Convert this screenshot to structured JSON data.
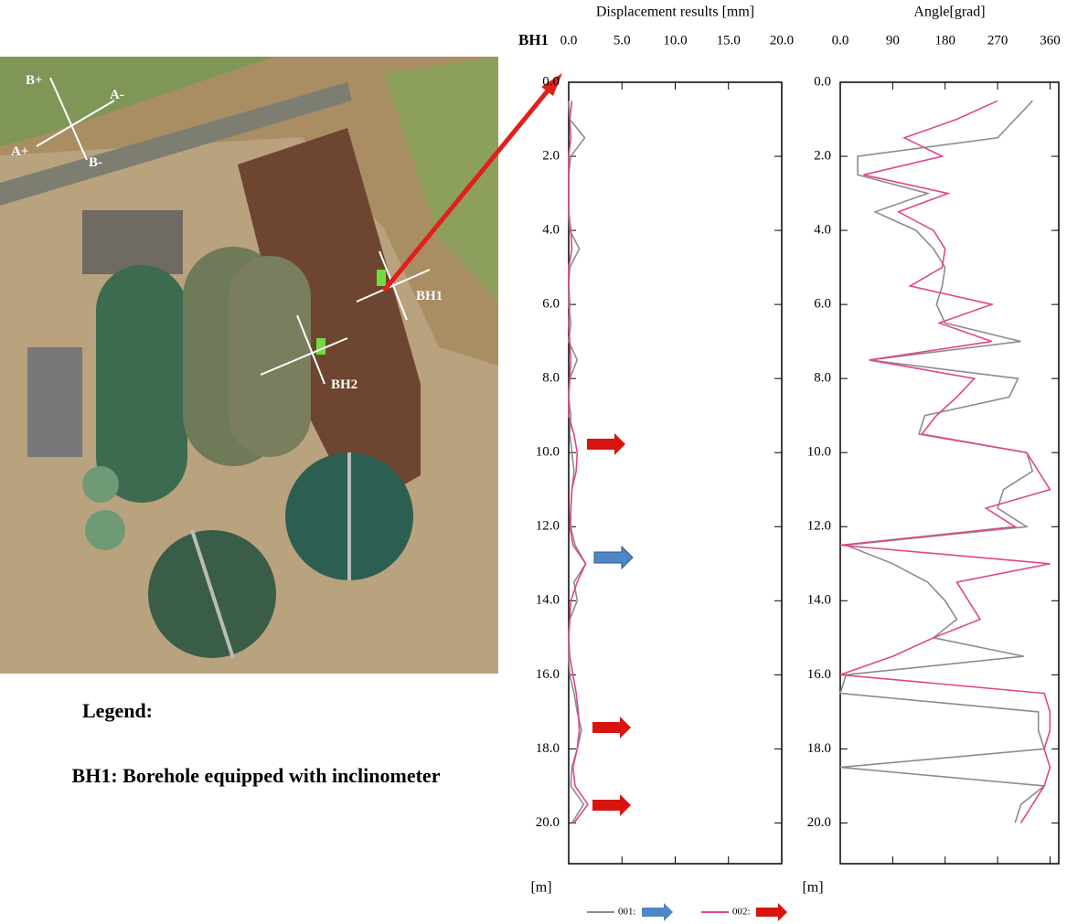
{
  "map": {
    "labels": [
      "B+",
      "A-",
      "A+",
      "B-",
      "BH1",
      "BH2"
    ]
  },
  "legend": {
    "title": "Legend:",
    "text": "BH1: Borehole equipped with inclinometer"
  },
  "chart_data": [
    {
      "type": "line",
      "title": "Displacement results [mm]",
      "borehole": "BH1",
      "y_label": "[m]",
      "y": [
        0.5,
        1.0,
        1.5,
        2.0,
        2.5,
        3.0,
        3.5,
        4.0,
        4.5,
        5.0,
        5.5,
        6.0,
        6.5,
        7.0,
        7.5,
        8.0,
        8.5,
        9.0,
        9.5,
        10.0,
        10.5,
        11.0,
        11.5,
        12.0,
        12.5,
        13.0,
        13.5,
        14.0,
        14.5,
        15.0,
        15.5,
        16.0,
        16.5,
        17.0,
        17.5,
        18.0,
        18.5,
        19.0,
        19.5,
        20.0
      ],
      "ylim": [
        0,
        21.1
      ],
      "y_inverted": true,
      "yticks": [
        {
          "value": 0,
          "label": "0.0"
        },
        {
          "value": 2,
          "label": "2.0"
        },
        {
          "value": 4,
          "label": "4.0"
        },
        {
          "value": 6,
          "label": "6.0"
        },
        {
          "value": 8,
          "label": "8.0"
        },
        {
          "value": 10,
          "label": "10.0"
        },
        {
          "value": 12,
          "label": "12.0"
        },
        {
          "value": 14,
          "label": "14.0"
        },
        {
          "value": 16,
          "label": "16.0"
        },
        {
          "value": 18,
          "label": "18.0"
        },
        {
          "value": 20,
          "label": "20.0"
        }
      ],
      "xlim": [
        0,
        20
      ],
      "xticks": [
        {
          "value": 0,
          "label": "0.0"
        },
        {
          "value": 5,
          "label": "5.0"
        },
        {
          "value": 10,
          "label": "10.0"
        },
        {
          "value": 15,
          "label": "15.0"
        },
        {
          "value": 20,
          "label": "20.0"
        }
      ],
      "series": [
        {
          "name": "001:",
          "color": "#8c8c8c",
          "values": [
            0,
            0.1,
            1.5,
            0.2,
            0,
            0,
            0,
            0.1,
            1.0,
            0.1,
            0,
            0,
            0.2,
            0,
            0.8,
            0.1,
            0,
            0.2,
            0.1,
            0.3,
            0.5,
            0.3,
            0.2,
            0.2,
            0.6,
            1.6,
            0.5,
            0.8,
            0.1,
            0,
            0,
            0.1,
            0.5,
            0.8,
            1.2,
            0.8,
            0.3,
            0.2,
            1.4,
            0.3
          ]
        },
        {
          "name": "002:",
          "color": "#e0458f",
          "values": [
            0.3,
            0.1,
            0.2,
            0,
            0,
            0,
            0,
            0.2,
            0.3,
            0,
            0,
            0.1,
            0,
            0.1,
            0.2,
            0.1,
            0,
            0,
            0.5,
            0.8,
            0.7,
            0.3,
            0.2,
            0.1,
            0.4,
            1.6,
            0.8,
            0.2,
            0.1,
            0,
            0.1,
            0.4,
            0.7,
            0.9,
            1.0,
            0.8,
            0.4,
            0.6,
            1.8,
            0.5
          ]
        }
      ]
    },
    {
      "type": "line",
      "title": "Angle[grad]",
      "y_label": "[m]",
      "y": [
        0.5,
        1.0,
        1.5,
        2.0,
        2.5,
        3.0,
        3.5,
        4.0,
        4.5,
        5.0,
        5.5,
        6.0,
        6.5,
        7.0,
        7.5,
        8.0,
        8.5,
        9.0,
        9.5,
        10.0,
        10.5,
        11.0,
        11.5,
        12.0,
        12.5,
        13.0,
        13.5,
        14.0,
        14.5,
        15.0,
        15.5,
        16.0,
        16.5,
        17.0,
        17.5,
        18.0,
        18.5,
        19.0,
        19.5,
        20.0
      ],
      "ylim": [
        0,
        21.1
      ],
      "y_inverted": true,
      "yticks": [
        {
          "value": 0,
          "label": "0.0"
        },
        {
          "value": 2,
          "label": "2.0"
        },
        {
          "value": 4,
          "label": "4.0"
        },
        {
          "value": 6,
          "label": "6.0"
        },
        {
          "value": 8,
          "label": "8.0"
        },
        {
          "value": 10,
          "label": "10.0"
        },
        {
          "value": 12,
          "label": "12.0"
        },
        {
          "value": 14,
          "label": "14.0"
        },
        {
          "value": 16,
          "label": "16.0"
        },
        {
          "value": 18,
          "label": "18.0"
        },
        {
          "value": 20,
          "label": "20.0"
        }
      ],
      "xlim": [
        0,
        375
      ],
      "xticks": [
        {
          "value": 0,
          "label": "0.0"
        },
        90,
        180,
        270,
        360
      ],
      "series": [
        {
          "color": "#8c8c8c",
          "values": [
            330,
            300,
            270,
            30,
            30,
            150,
            60,
            130,
            160,
            180,
            175,
            165,
            180,
            310,
            50,
            305,
            290,
            145,
            135,
            320,
            330,
            280,
            270,
            320,
            10,
            90,
            150,
            180,
            200,
            160,
            315,
            10,
            0,
            340,
            340,
            350,
            0,
            350,
            310,
            300
          ]
        },
        {
          "color": "#e0458f",
          "values": [
            270,
            200,
            110,
            175,
            40,
            185,
            100,
            160,
            180,
            175,
            120,
            260,
            170,
            260,
            50,
            230,
            200,
            165,
            140,
            320,
            340,
            360,
            250,
            300,
            0,
            360,
            200,
            220,
            240,
            160,
            90,
            0,
            350,
            360,
            360,
            350,
            360,
            350,
            330,
            310
          ]
        }
      ]
    }
  ]
}
